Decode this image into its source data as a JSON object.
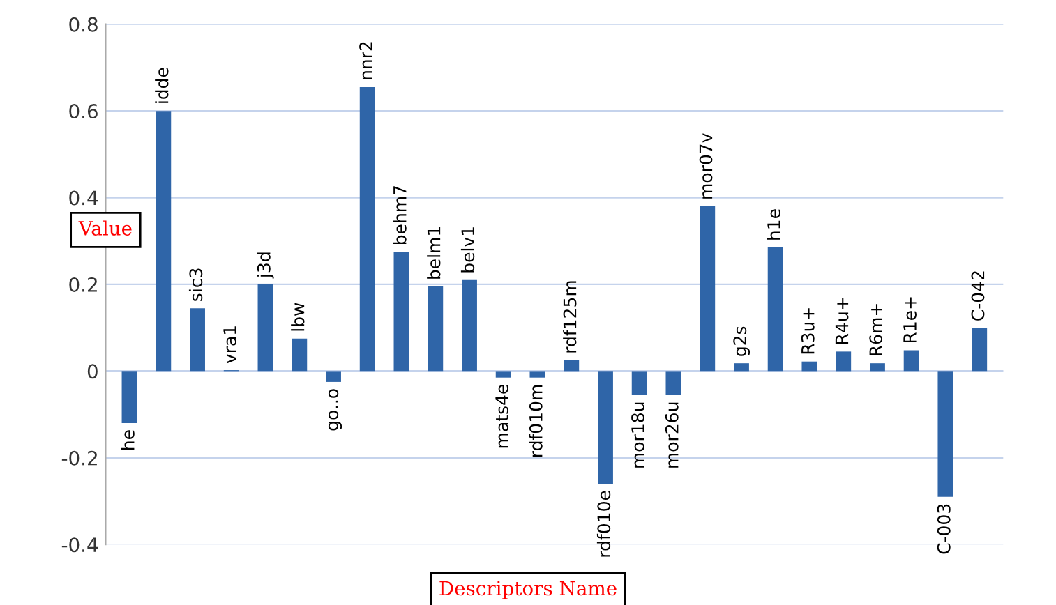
{
  "chart_data": {
    "type": "bar",
    "xlabel": "Descriptors Name",
    "ylabel": "Value",
    "categories": [
      "he",
      "idde",
      "sic3",
      "vra1",
      "j3d",
      "lbw",
      "go..o",
      "nnr2",
      "behm7",
      "belm1",
      "belv1",
      "mats4e",
      "rdf010m",
      "rdf125m",
      "rdf010e",
      "mor18u",
      "mor26u",
      "mor07v",
      "g2s",
      "h1e",
      "R3u+",
      "R4u+",
      "R6m+",
      "R1e+",
      "C-003",
      "C-042"
    ],
    "values": [
      -0.12,
      0.6,
      0.145,
      0.002,
      0.2,
      0.075,
      -0.025,
      0.655,
      0.275,
      0.195,
      0.21,
      -0.015,
      -0.015,
      0.025,
      -0.26,
      -0.055,
      -0.055,
      0.38,
      0.018,
      0.285,
      0.022,
      0.045,
      0.018,
      0.048,
      -0.29,
      0.1
    ],
    "color": "#2f65a8",
    "ylim": [
      -0.4,
      0.8
    ],
    "yticks": [
      -0.4,
      -0.2,
      0,
      0.2,
      0.4,
      0.6,
      0.8
    ],
    "grid": "y"
  }
}
